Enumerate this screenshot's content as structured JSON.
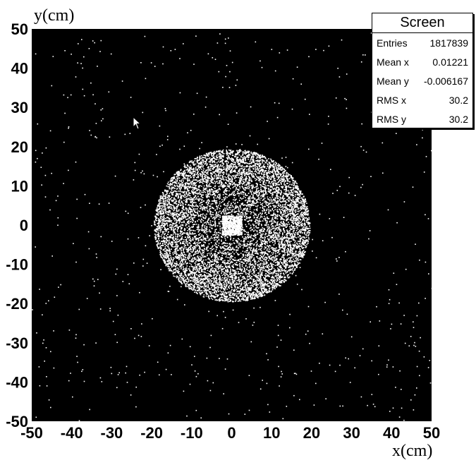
{
  "chart_data": {
    "type": "scatter",
    "title": "",
    "xlabel": "x(cm)",
    "ylabel": "y(cm)",
    "xlim": [
      -50,
      50
    ],
    "ylim": [
      -50,
      50
    ],
    "xticks": [
      "-50",
      "-40",
      "-30",
      "-20",
      "-10",
      "0",
      "10",
      "20",
      "30",
      "40",
      "50"
    ],
    "yticks": [
      "-50",
      "-40",
      "-30",
      "-20",
      "-10",
      "0",
      "10",
      "20",
      "30",
      "40",
      "50"
    ],
    "grid": false,
    "background_color": "#000000",
    "point_color": "#ffffff",
    "regions": [
      {
        "shape": "disk",
        "center": [
          0,
          0
        ],
        "radius": 19.5,
        "density": "high"
      },
      {
        "shape": "square",
        "center": [
          0,
          0
        ],
        "half_width": 2.5,
        "density": "very-high"
      },
      {
        "shape": "background",
        "density": "sparse"
      }
    ],
    "stats": {
      "title": "Screen",
      "rows": [
        {
          "label": "Entries",
          "value": "1817839"
        },
        {
          "label": "Mean x",
          "value": "0.01221"
        },
        {
          "label": "Mean y",
          "value": "-0.006167"
        },
        {
          "label": "RMS x",
          "value": "30.2"
        },
        {
          "label": "RMS y",
          "value": "30.2"
        }
      ]
    }
  },
  "cursor": {
    "icon": "arrow-cursor-icon"
  }
}
